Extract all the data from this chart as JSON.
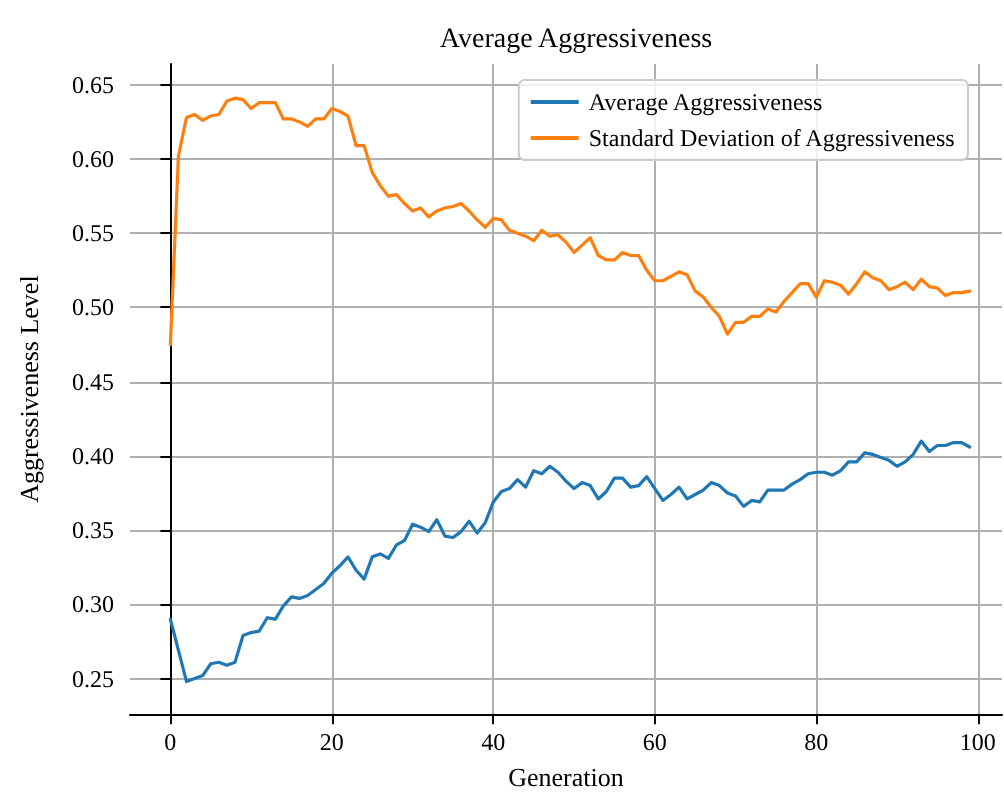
{
  "chart_data": {
    "type": "line",
    "title": "Average Aggressiveness",
    "xlabel": "Generation",
    "ylabel": "Aggressiveness Level",
    "x": [
      0,
      1,
      2,
      3,
      4,
      5,
      6,
      7,
      8,
      9,
      10,
      11,
      12,
      13,
      14,
      15,
      16,
      17,
      18,
      19,
      20,
      21,
      22,
      23,
      24,
      25,
      26,
      27,
      28,
      29,
      30,
      31,
      32,
      33,
      34,
      35,
      36,
      37,
      38,
      39,
      40,
      41,
      42,
      43,
      44,
      45,
      46,
      47,
      48,
      49,
      50,
      51,
      52,
      53,
      54,
      55,
      56,
      57,
      58,
      59,
      60,
      61,
      62,
      63,
      64,
      65,
      66,
      67,
      68,
      69,
      70,
      71,
      72,
      73,
      74,
      75,
      76,
      77,
      78,
      79,
      80,
      81,
      82,
      83,
      84,
      85,
      86,
      87,
      88,
      89,
      90,
      91,
      92,
      93,
      94,
      95,
      96,
      97,
      98,
      99
    ],
    "series": [
      {
        "name": "Average Aggressiveness",
        "color": "#1f77b4",
        "values": [
          0.29,
          0.269,
          0.248,
          0.25,
          0.252,
          0.26,
          0.261,
          0.259,
          0.261,
          0.279,
          0.281,
          0.282,
          0.291,
          0.29,
          0.299,
          0.305,
          0.304,
          0.306,
          0.31,
          0.314,
          0.321,
          0.326,
          0.332,
          0.323,
          0.317,
          0.332,
          0.334,
          0.331,
          0.34,
          0.343,
          0.354,
          0.352,
          0.349,
          0.357,
          0.346,
          0.345,
          0.349,
          0.356,
          0.348,
          0.355,
          0.369,
          0.376,
          0.378,
          0.384,
          0.379,
          0.39,
          0.388,
          0.393,
          0.389,
          0.383,
          0.378,
          0.382,
          0.38,
          0.371,
          0.376,
          0.385,
          0.385,
          0.379,
          0.38,
          0.386,
          0.378,
          0.37,
          0.374,
          0.379,
          0.371,
          0.374,
          0.377,
          0.382,
          0.38,
          0.375,
          0.373,
          0.366,
          0.37,
          0.369,
          0.377,
          0.377,
          0.377,
          0.381,
          0.384,
          0.388,
          0.389,
          0.389,
          0.387,
          0.39,
          0.396,
          0.396,
          0.402,
          0.401,
          0.399,
          0.397,
          0.393,
          0.396,
          0.401,
          0.41,
          0.403,
          0.407,
          0.407,
          0.409,
          0.409,
          0.406
        ]
      },
      {
        "name": "Standard Deviation of Aggressiveness",
        "color": "#ff7f0e",
        "values": [
          0.475,
          0.602,
          0.628,
          0.63,
          0.626,
          0.629,
          0.63,
          0.639,
          0.641,
          0.64,
          0.634,
          0.638,
          0.638,
          0.638,
          0.627,
          0.627,
          0.625,
          0.622,
          0.627,
          0.627,
          0.634,
          0.632,
          0.629,
          0.609,
          0.609,
          0.591,
          0.582,
          0.575,
          0.576,
          0.57,
          0.565,
          0.567,
          0.561,
          0.565,
          0.567,
          0.568,
          0.57,
          0.565,
          0.559,
          0.554,
          0.56,
          0.559,
          0.552,
          0.55,
          0.548,
          0.545,
          0.552,
          0.548,
          0.549,
          0.544,
          0.537,
          0.542,
          0.547,
          0.535,
          0.532,
          0.532,
          0.537,
          0.535,
          0.535,
          0.525,
          0.518,
          0.518,
          0.521,
          0.524,
          0.522,
          0.511,
          0.507,
          0.5,
          0.494,
          0.482,
          0.49,
          0.49,
          0.494,
          0.494,
          0.499,
          0.497,
          0.504,
          0.51,
          0.516,
          0.516,
          0.507,
          0.518,
          0.517,
          0.515,
          0.509,
          0.516,
          0.524,
          0.52,
          0.518,
          0.512,
          0.514,
          0.517,
          0.512,
          0.519,
          0.514,
          0.513,
          0.508,
          0.51,
          0.51,
          0.511
        ]
      }
    ],
    "xlim": [
      -5,
      103
    ],
    "xticks": [
      0,
      20,
      40,
      60,
      80,
      100
    ],
    "ylim": [
      0.226,
      0.664
    ],
    "yticks": [
      {
        "value": 0.25,
        "label": "0.25"
      },
      {
        "value": 0.3,
        "label": "0.30"
      },
      {
        "value": 0.35,
        "label": "0.35"
      },
      {
        "value": 0.4,
        "label": "0.40"
      },
      {
        "value": 0.45,
        "label": "0.45"
      },
      {
        "value": 0.5,
        "label": "0.50"
      },
      {
        "value": 0.55,
        "label": "0.55"
      },
      {
        "value": 0.6,
        "label": "0.60"
      },
      {
        "value": 0.65,
        "label": "0.65"
      }
    ],
    "grid": true,
    "legend": "top right",
    "marker": "none",
    "line_style": "solid"
  }
}
